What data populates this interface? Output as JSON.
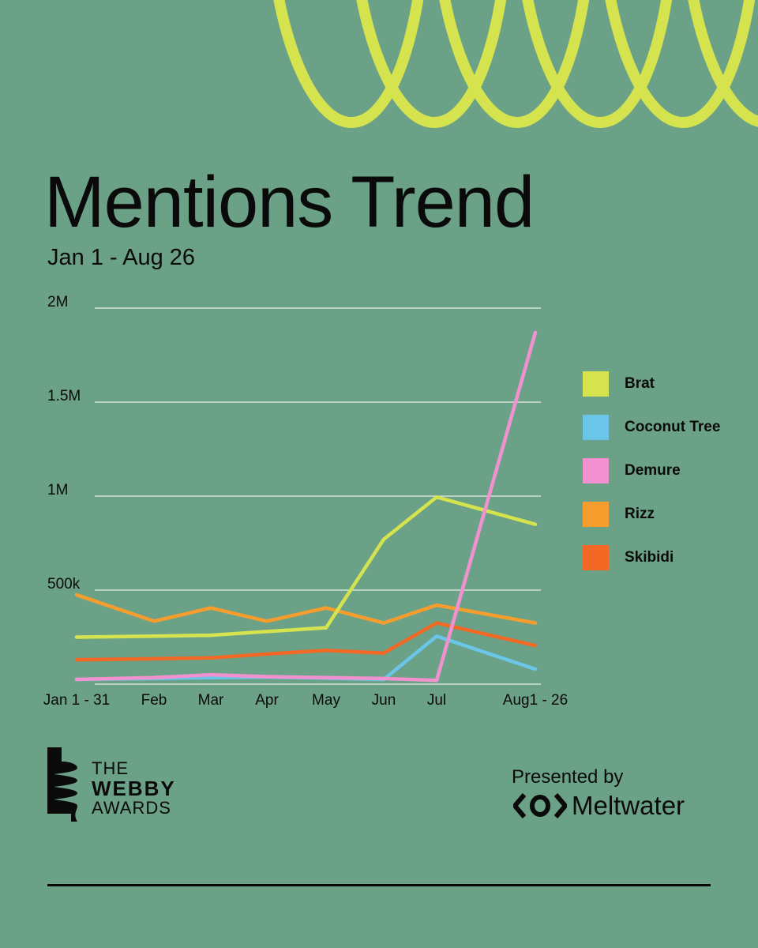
{
  "title": "Mentions Trend",
  "subtitle": "Jan 1 - Aug 26",
  "chart_data": {
    "type": "line",
    "categories": [
      "Jan 1 - 31",
      "Feb",
      "Mar",
      "Apr",
      "May",
      "Jun",
      "Jul",
      "Aug1 - 26"
    ],
    "y_ticks": [
      {
        "value": 500000,
        "label": "500k"
      },
      {
        "value": 1000000,
        "label": "1M"
      },
      {
        "value": 1500000,
        "label": "1.5M"
      },
      {
        "value": 2000000,
        "label": "2M"
      }
    ],
    "ylim": [
      0,
      2000000
    ],
    "grid": true,
    "legend": "right",
    "series": [
      {
        "name": "Brat",
        "color": "#d4e34e",
        "values": [
          250000,
          255000,
          260000,
          280000,
          300000,
          770000,
          995000,
          850000
        ]
      },
      {
        "name": "Coconut Tree",
        "color": "#6ac5e8",
        "values": [
          25000,
          30000,
          35000,
          38000,
          32000,
          25000,
          255000,
          80000
        ]
      },
      {
        "name": "Demure",
        "color": "#f291d0",
        "values": [
          25000,
          35000,
          50000,
          40000,
          35000,
          30000,
          20000,
          1870000
        ]
      },
      {
        "name": "Rizz",
        "color": "#f79d2d",
        "values": [
          475000,
          335000,
          405000,
          335000,
          405000,
          325000,
          420000,
          325000
        ]
      },
      {
        "name": "Skibidi",
        "color": "#f26824",
        "values": [
          130000,
          135000,
          140000,
          160000,
          180000,
          165000,
          325000,
          205000
        ]
      }
    ]
  },
  "brand": {
    "webby_line1": "THE",
    "webby_line2": "WEBBY",
    "webby_line3": "AWARDS",
    "presented_by": "Presented by",
    "sponsor": "Meltwater"
  }
}
